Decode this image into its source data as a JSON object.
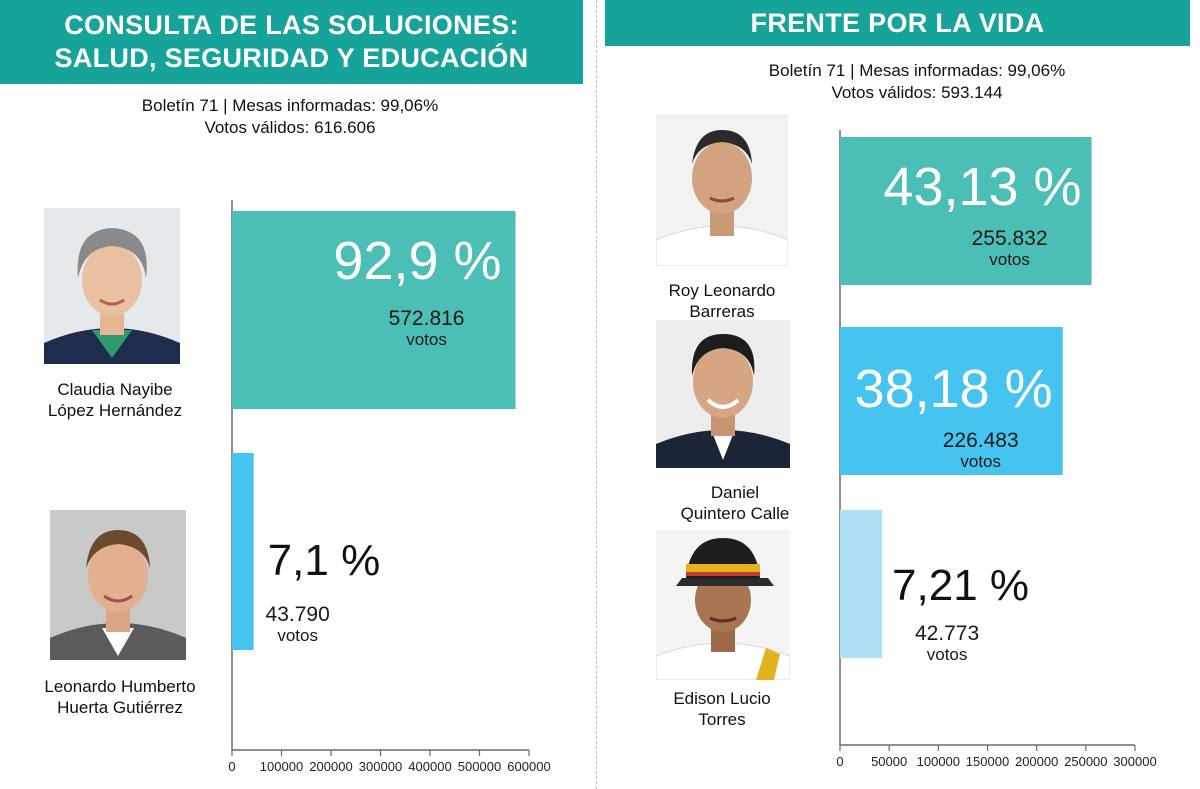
{
  "colors": {
    "banner": "#16a39a",
    "bar_teal": "#4bbfb6",
    "bar_blue": "#45c4f0",
    "bar_light": "#aee1f7",
    "axis": "#6a6a6a"
  },
  "left": {
    "title": "CONSULTA DE LAS SOLUCIONES: SALUD, SEGURIDAD Y EDUCACIÓN",
    "bulletin": "Boletín 71 | Mesas informadas: 99,06%",
    "valid_votes": "Votos válidos: 616.606",
    "candidates": [
      {
        "name_line1": "Claudia Nayibe",
        "name_line2": "López Hernández",
        "photo": "woman-portrait"
      },
      {
        "name_line1": "Leonardo Humberto",
        "name_line2": "Huerta Gutiérrez",
        "photo": "man-portrait"
      }
    ]
  },
  "right": {
    "title": "FRENTE POR LA VIDA",
    "bulletin": "Boletín 71 | Mesas informadas: 99,06%",
    "valid_votes": "Votos válidos: 593.144",
    "candidates": [
      {
        "name_line1": "Roy Leonardo",
        "name_line2": "Barreras",
        "photo": "man-portrait"
      },
      {
        "name_line1": "Daniel",
        "name_line2": "Quintero Calle",
        "photo": "man-portrait"
      },
      {
        "name_line1": "Edison Lucio",
        "name_line2": "Torres",
        "photo": "man-cap-portrait"
      }
    ]
  },
  "chart_data": [
    {
      "type": "bar",
      "orientation": "horizontal",
      "categories": [
        "Claudia Nayibe López Hernández",
        "Leonardo Humberto Huerta Gutiérrez"
      ],
      "values": [
        572816,
        43790
      ],
      "percent_labels": [
        "92,9 %",
        "7,1 %"
      ],
      "vote_labels": [
        "572.816",
        "43.790"
      ],
      "unit_label": "votos",
      "xlim": [
        0,
        600000
      ],
      "xticks": [
        0,
        100000,
        200000,
        300000,
        400000,
        500000,
        600000
      ],
      "xtick_labels": [
        "0",
        "100000",
        "200000",
        "300000",
        "400000",
        "500000",
        "600000"
      ],
      "bar_colors": [
        "#4bbfb6",
        "#45c4f0"
      ],
      "grid": false
    },
    {
      "type": "bar",
      "orientation": "horizontal",
      "categories": [
        "Roy Leonardo Barreras",
        "Daniel Quintero Calle",
        "Edison Lucio Torres"
      ],
      "values": [
        255832,
        226483,
        42773
      ],
      "percent_labels": [
        "43,13 %",
        "38,18 %",
        "7,21 %"
      ],
      "vote_labels": [
        "255.832",
        "226.483",
        "42.773"
      ],
      "unit_label": "votos",
      "xlim": [
        0,
        300000
      ],
      "xticks": [
        0,
        50000,
        100000,
        150000,
        200000,
        250000,
        300000
      ],
      "xtick_labels": [
        "0",
        "50000",
        "100000",
        "150000",
        "200000",
        "250000",
        "300000"
      ],
      "bar_colors": [
        "#4bbfb6",
        "#45c4f0",
        "#aee1f7"
      ],
      "grid": false
    }
  ]
}
